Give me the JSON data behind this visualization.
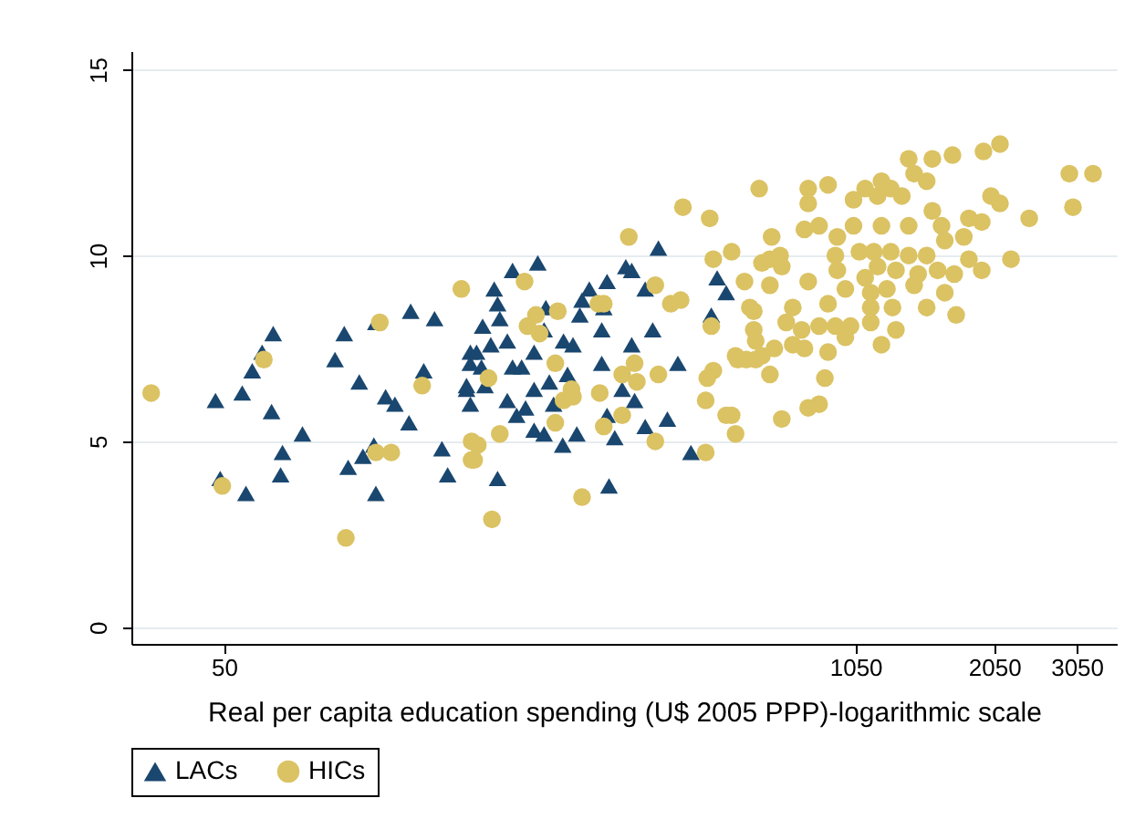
{
  "chart_data": {
    "type": "scatter",
    "xlabel": "Real per capita education spending (U$ 2005 PPP)-logarithmic scale",
    "log": "x",
    "xlim": [
      32,
      3700
    ],
    "xticks": [
      50,
      1050,
      2050,
      3050
    ],
    "ylim": [
      -0.45,
      15.5
    ],
    "yticks": [
      0,
      5,
      10,
      15
    ],
    "grid": "y",
    "legend": "bottom",
    "series": [
      {
        "name": "LACs",
        "color": "#1a476f",
        "marker": "triangle",
        "x": [
          48,
          54.6,
          57.3,
          60.1,
          63.4,
          62.9,
          73,
          66.3,
          65.7,
          49.1,
          55.6,
          85.4,
          89.3,
          96,
          104,
          123,
          138,
          109,
          114,
          122,
          131,
          103,
          97.7,
          91,
          104,
          143,
          147,
          161,
          164,
          164,
          201,
          227,
          184,
          187,
          189,
          174,
          169,
          181,
          196,
          164,
          173,
          201,
          210,
          223,
          161,
          176,
          196,
          205,
          214,
          223,
          223,
          240,
          245,
          234,
          256,
          274,
          262,
          257,
          269,
          236,
          234,
          278,
          281,
          291,
          317,
          312,
          309,
          309,
          357,
          341,
          362,
          317,
          329,
          347,
          357,
          406,
          381,
          395,
          446,
          424,
          381,
          475,
          187,
          320,
          539,
          563,
          524
        ],
        "values": [
          6.1,
          6.3,
          6.9,
          7.4,
          7.9,
          5.8,
          5.2,
          4.7,
          4.1,
          4.0,
          3.6,
          7.2,
          7.9,
          6.6,
          8.2,
          8.5,
          8.3,
          6.2,
          6.0,
          5.5,
          6.9,
          4.9,
          4.6,
          4.3,
          3.6,
          4.8,
          4.1,
          6.4,
          7.4,
          6.0,
          9.6,
          9.8,
          9.1,
          8.7,
          8.3,
          8.1,
          7.4,
          7.6,
          7.7,
          7.1,
          7.0,
          7.0,
          7.0,
          7.4,
          6.5,
          6.5,
          6.1,
          5.7,
          5.9,
          6.4,
          5.3,
          6.6,
          6.0,
          5.2,
          4.9,
          5.2,
          6.8,
          7.7,
          7.6,
          8.6,
          8.0,
          8.4,
          8.8,
          9.1,
          9.3,
          8.6,
          8.0,
          7.1,
          7.6,
          6.4,
          6.1,
          5.7,
          5.1,
          9.7,
          9.6,
          10.2,
          9.1,
          8.0,
          7.1,
          5.6,
          5.4,
          4.7,
          4.0,
          3.8,
          9.4,
          9.0,
          8.4
        ]
      },
      {
        "name": "HICs",
        "color": "#dbc263",
        "marker": "circle",
        "x": [
          35.2,
          49.6,
          60.6,
          106,
          130,
          104,
          112,
          90,
          157,
          165,
          165,
          213,
          225,
          216,
          229,
          250,
          304,
          312,
          247,
          179,
          267,
          257,
          269,
          306,
          247,
          312,
          341,
          341,
          362,
          366,
          406,
          400,
          431,
          452,
          352,
          457,
          520,
          529,
          578,
          615,
          669,
          643,
          524,
          643,
          649,
          595,
          620,
          669,
          529,
          514,
          510,
          563,
          589,
          510,
          400,
          189,
          170,
          167,
          281,
          182,
          2107,
          1946,
          1676,
          1521,
          1357,
          2944,
          3300,
          2996,
          2426,
          2107,
          2018,
          1814,
          1930,
          1521,
          1590,
          1393,
          1480,
          1190,
          1245,
          1100,
          1040,
          1168,
          1313,
          920,
          836,
          836,
          660,
          881,
          821,
          962,
          1040,
          1190,
          1357,
          701,
          1070,
          1147,
          1245,
          1357,
          1480,
          1615,
          1770,
          1814,
          1930,
          2222,
          1690,
          1560,
          1420,
          1276,
          1168,
          1100,
          953,
          962,
          695,
          730,
          736,
          695,
          836,
          1000,
          920,
          1130,
          1222,
          1130,
          1255,
          1480,
          1615,
          1706,
          1393,
          631,
          776,
          752,
          810,
          881,
          953,
          1025,
          1130,
          1276,
          710,
          776,
          821,
          920,
          1000,
          1190,
          589,
          649,
          695,
          906,
          881,
          836,
          736,
          578
        ],
        "values": [
          6.3,
          3.8,
          7.2,
          8.2,
          6.5,
          4.7,
          4.7,
          2.4,
          9.1,
          4.5,
          5.0,
          9.3,
          8.4,
          8.1,
          7.9,
          8.5,
          8.7,
          8.7,
          7.1,
          6.7,
          6.4,
          6.1,
          6.2,
          6.3,
          5.5,
          5.4,
          5.7,
          6.8,
          7.1,
          6.6,
          6.8,
          9.2,
          8.7,
          8.8,
          10.5,
          11.3,
          11.0,
          9.9,
          10.1,
          9.3,
          9.8,
          8.5,
          8.1,
          8.0,
          7.7,
          7.2,
          7.2,
          7.3,
          6.9,
          6.7,
          6.1,
          5.7,
          5.2,
          4.7,
          5.0,
          5.2,
          4.9,
          4.5,
          3.5,
          2.9,
          13.0,
          12.8,
          12.7,
          12.6,
          12.6,
          12.2,
          12.2,
          11.3,
          11.0,
          11.4,
          11.6,
          11.0,
          10.9,
          11.2,
          10.8,
          12.2,
          12.0,
          12.0,
          11.8,
          11.8,
          11.5,
          11.6,
          11.6,
          11.9,
          11.8,
          11.4,
          11.8,
          10.8,
          10.7,
          10.5,
          10.8,
          10.8,
          10.8,
          10.5,
          10.1,
          10.1,
          10.1,
          10.0,
          10.0,
          10.4,
          10.5,
          9.9,
          9.6,
          9.9,
          9.5,
          9.6,
          9.5,
          9.6,
          9.7,
          9.4,
          10.0,
          9.6,
          9.9,
          10.0,
          9.7,
          9.2,
          9.3,
          9.1,
          8.7,
          9.0,
          9.1,
          8.6,
          8.6,
          8.6,
          9.0,
          8.4,
          9.2,
          8.6,
          8.6,
          8.2,
          8.0,
          8.1,
          8.1,
          8.1,
          8.2,
          8.0,
          7.5,
          7.6,
          7.5,
          7.4,
          7.8,
          7.6,
          7.3,
          7.2,
          6.8,
          6.7,
          6.0,
          5.9,
          5.6,
          5.7
        ]
      }
    ]
  }
}
